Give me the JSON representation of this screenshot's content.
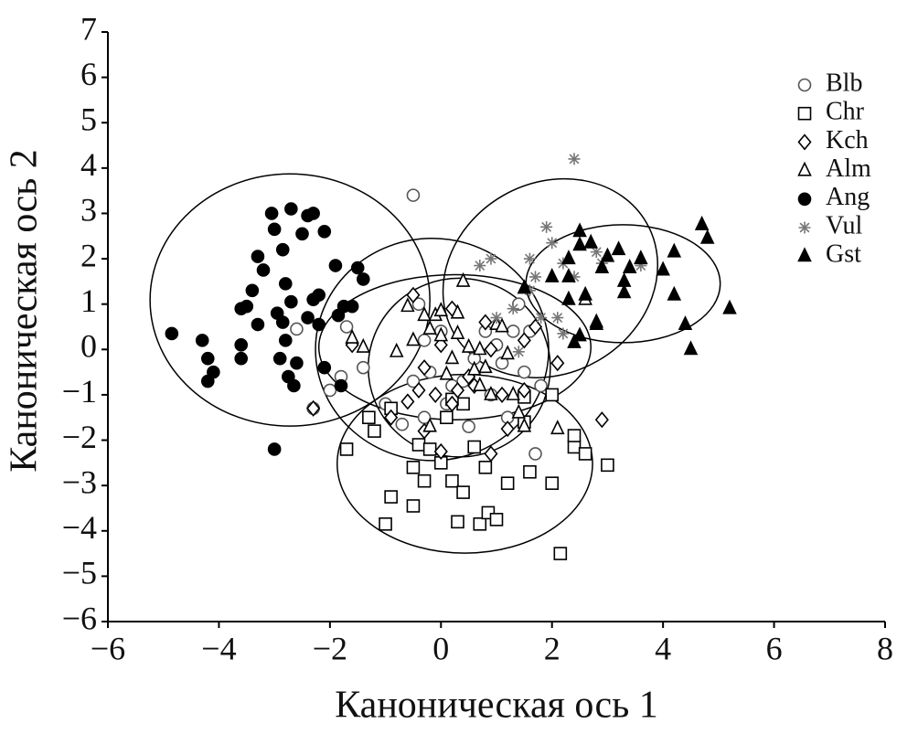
{
  "chart_data": {
    "type": "scatter",
    "xlabel": "Каноническая ось 1",
    "ylabel": "Каноническая ось 2",
    "xlim": [
      -6,
      8
    ],
    "ylim": [
      -6,
      7
    ],
    "xticks": [
      {
        "value": -6,
        "label": "−6"
      },
      {
        "value": -4,
        "label": "−4"
      },
      {
        "value": -2,
        "label": "−2"
      },
      0,
      2,
      4,
      6,
      8
    ],
    "yticks": [
      {
        "value": -6,
        "label": "−6"
      },
      {
        "value": -5,
        "label": "−5"
      },
      {
        "value": -4,
        "label": "−4"
      },
      {
        "value": -3,
        "label": "−3"
      },
      {
        "value": -2,
        "label": "−2"
      },
      {
        "value": -1,
        "label": "−1"
      },
      0,
      1,
      2,
      3,
      4,
      5,
      6,
      7
    ],
    "legend": "upper right",
    "series": [
      {
        "name": "Blb",
        "marker": "circle",
        "filled": false,
        "color": "#555555",
        "x": [
          -0.5,
          -2.6,
          -2.3,
          -1.8,
          -2.0,
          -1.7,
          -1.4,
          -1.0,
          -0.7,
          -0.5,
          -0.3,
          0.1,
          0.4,
          0.6,
          0.8,
          1.0,
          1.1,
          1.3,
          1.4,
          1.5,
          1.8,
          1.7,
          0.0,
          -0.2,
          0.2,
          0.5,
          0.9,
          1.2,
          -0.4,
          -0.3,
          1.6
        ],
        "values": [
          3.4,
          0.45,
          -1.3,
          -0.6,
          -0.9,
          0.5,
          -0.4,
          -1.2,
          -1.65,
          -0.7,
          -1.5,
          -1.2,
          -0.7,
          -0.2,
          0.4,
          0.1,
          -0.3,
          0.4,
          1.0,
          -0.5,
          -0.8,
          -2.3,
          0.4,
          -0.5,
          -0.8,
          -1.7,
          -1.0,
          -1.5,
          1.0,
          0.2,
          0.4
        ],
        "ellipse": {
          "cx": -0.16,
          "cy": 0.0,
          "rx": 2.1,
          "ry": 2.45,
          "angle": 0
        }
      },
      {
        "name": "Chr",
        "marker": "square",
        "filled": false,
        "color": "#000000",
        "x": [
          -1.3,
          -1.2,
          -1.7,
          -1.0,
          -0.9,
          -0.5,
          -0.5,
          -0.4,
          -0.3,
          -0.2,
          0.0,
          0.1,
          0.2,
          0.3,
          0.4,
          0.4,
          0.6,
          0.7,
          0.8,
          0.85,
          1.0,
          1.2,
          1.5,
          1.6,
          2.0,
          2.0,
          2.15,
          2.4,
          2.6,
          3.0,
          2.4,
          1.5,
          -0.9,
          0.2
        ],
        "values": [
          -1.5,
          -1.8,
          -2.2,
          -3.85,
          -3.25,
          -3.45,
          -2.6,
          -2.1,
          -2.9,
          -2.2,
          -2.5,
          -1.5,
          -2.9,
          -3.8,
          -3.15,
          -1.2,
          -2.15,
          -3.85,
          -2.6,
          -3.6,
          -3.75,
          -2.95,
          -1.6,
          -2.7,
          -1.0,
          -2.95,
          -4.5,
          -2.15,
          -2.3,
          -2.55,
          -1.9,
          -1.05,
          -1.3,
          -1.1
        ],
        "ellipse": {
          "cx": 0.43,
          "cy": -2.52,
          "rx": 2.3,
          "ry": 1.97,
          "angle": 0
        }
      },
      {
        "name": "Kch",
        "marker": "diamond",
        "filled": false,
        "color": "#000000",
        "x": [
          -2.3,
          -1.6,
          -0.9,
          -0.6,
          -0.5,
          -0.4,
          -0.3,
          -0.1,
          0.0,
          0.0,
          0.2,
          0.3,
          0.5,
          0.6,
          0.9,
          0.9,
          1.1,
          1.2,
          1.5,
          1.5,
          1.7,
          2.1,
          2.9,
          -0.3,
          0.8,
          0.2
        ],
        "values": [
          -1.3,
          0.1,
          -1.5,
          -1.15,
          1.2,
          -0.9,
          -1.8,
          -1.0,
          -2.25,
          0.1,
          0.9,
          -0.9,
          -0.6,
          -0.8,
          -2.3,
          0.0,
          -1.0,
          -1.75,
          -0.9,
          0.2,
          0.5,
          -0.3,
          -1.55,
          -0.4,
          0.6,
          -1.2
        ],
        "ellipse": {
          "cx": 0.25,
          "cy": 0.05,
          "rx": 2.45,
          "ry": 1.6,
          "angle": 0
        }
      },
      {
        "name": "Alm",
        "marker": "triangle",
        "filled": false,
        "color": "#000000",
        "x": [
          -1.6,
          -1.4,
          -0.8,
          -0.6,
          -0.5,
          -0.3,
          -0.2,
          -0.1,
          0.0,
          0.1,
          0.2,
          0.3,
          0.4,
          0.5,
          0.6,
          0.7,
          0.8,
          0.9,
          1.0,
          1.2,
          1.3,
          1.4,
          1.5,
          1.1,
          0.3,
          2.1,
          2.6,
          -0.2,
          0.0,
          0.7
        ],
        "values": [
          0.25,
          0.05,
          -0.05,
          0.95,
          0.2,
          0.75,
          0.45,
          0.75,
          0.85,
          -0.55,
          -0.2,
          0.8,
          1.5,
          0.05,
          -0.45,
          -0.8,
          -0.4,
          -1.0,
          0.55,
          -0.1,
          -1.0,
          -1.4,
          -1.7,
          0.5,
          0.35,
          -1.75,
          1.1,
          -1.7,
          0.3,
          0.0
        ],
        "ellipse": {
          "cx": 0.33,
          "cy": -0.4,
          "rx": 1.64,
          "ry": 1.97,
          "angle": 0
        }
      },
      {
        "name": "Ang",
        "marker": "circle",
        "filled": true,
        "color": "#000000",
        "x": [
          -4.85,
          -4.3,
          -4.2,
          -4.1,
          -4.2,
          -3.6,
          -3.6,
          -3.6,
          -3.4,
          -3.3,
          -3.2,
          -3.05,
          -3.0,
          -2.95,
          -2.85,
          -2.8,
          -2.8,
          -2.75,
          -2.7,
          -2.7,
          -2.6,
          -2.5,
          -2.4,
          -2.3,
          -2.2,
          -2.1,
          -2.2,
          -2.1,
          -1.9,
          -1.85,
          -1.75,
          -1.6,
          -1.5,
          -1.4,
          -3.0,
          -2.85,
          -2.65,
          -3.5,
          -2.3,
          -1.8,
          -2.4,
          -3.3,
          -2.9
        ],
        "values": [
          0.35,
          0.2,
          -0.2,
          -0.5,
          -0.7,
          0.9,
          0.1,
          -0.2,
          1.3,
          2.05,
          1.75,
          3.0,
          2.65,
          0.8,
          2.2,
          1.45,
          0.2,
          -0.6,
          3.1,
          1.05,
          -0.3,
          2.55,
          2.95,
          3.0,
          1.2,
          2.6,
          0.55,
          -0.4,
          1.85,
          0.75,
          0.95,
          0.95,
          1.8,
          1.55,
          -2.2,
          0.6,
          -0.8,
          0.95,
          1.1,
          -0.8,
          0.7,
          0.55,
          -0.2
        ],
        "ellipse": {
          "cx": -2.72,
          "cy": 1.09,
          "rx": 2.52,
          "ry": 2.78,
          "angle": 0
        }
      },
      {
        "name": "Vul",
        "marker": "asterisk",
        "filled": false,
        "color": "#777777",
        "x": [
          2.4,
          1.9,
          0.9,
          0.7,
          1.6,
          1.7,
          1.6,
          2.0,
          2.2,
          2.8,
          2.9,
          3.6,
          1.3,
          1.0,
          1.8,
          2.1,
          2.2,
          1.4,
          2.4
        ],
        "values": [
          4.2,
          2.7,
          2.0,
          1.85,
          2.0,
          1.6,
          1.3,
          2.35,
          1.9,
          2.15,
          1.9,
          1.85,
          0.9,
          0.7,
          0.7,
          0.7,
          0.35,
          -0.05,
          1.6
        ],
        "ellipse": {
          "cx": 1.97,
          "cy": 1.57,
          "rx": 2.0,
          "ry": 2.1,
          "angle": -30
        }
      },
      {
        "name": "Gst",
        "marker": "triangle",
        "filled": true,
        "color": "#000000",
        "x": [
          4.7,
          4.8,
          5.2,
          4.4,
          4.5,
          4.2,
          4.2,
          4.0,
          3.6,
          3.4,
          3.2,
          3.3,
          3.3,
          2.9,
          2.7,
          2.5,
          2.3,
          2.6,
          2.5,
          2.3,
          2.0,
          2.8,
          2.8,
          2.4,
          2.5,
          1.5,
          2.3,
          3.0
        ],
        "values": [
          2.75,
          2.45,
          0.9,
          0.55,
          0.0,
          2.15,
          1.2,
          1.75,
          2.0,
          1.8,
          2.2,
          1.25,
          1.5,
          1.8,
          2.35,
          2.3,
          2.0,
          1.2,
          2.6,
          1.6,
          1.6,
          0.6,
          0.55,
          0.15,
          0.3,
          1.35,
          1.1,
          2.05
        ],
        "ellipse": {
          "cx": 3.28,
          "cy": 1.45,
          "rx": 1.75,
          "ry": 1.3,
          "angle": 0
        }
      }
    ]
  }
}
